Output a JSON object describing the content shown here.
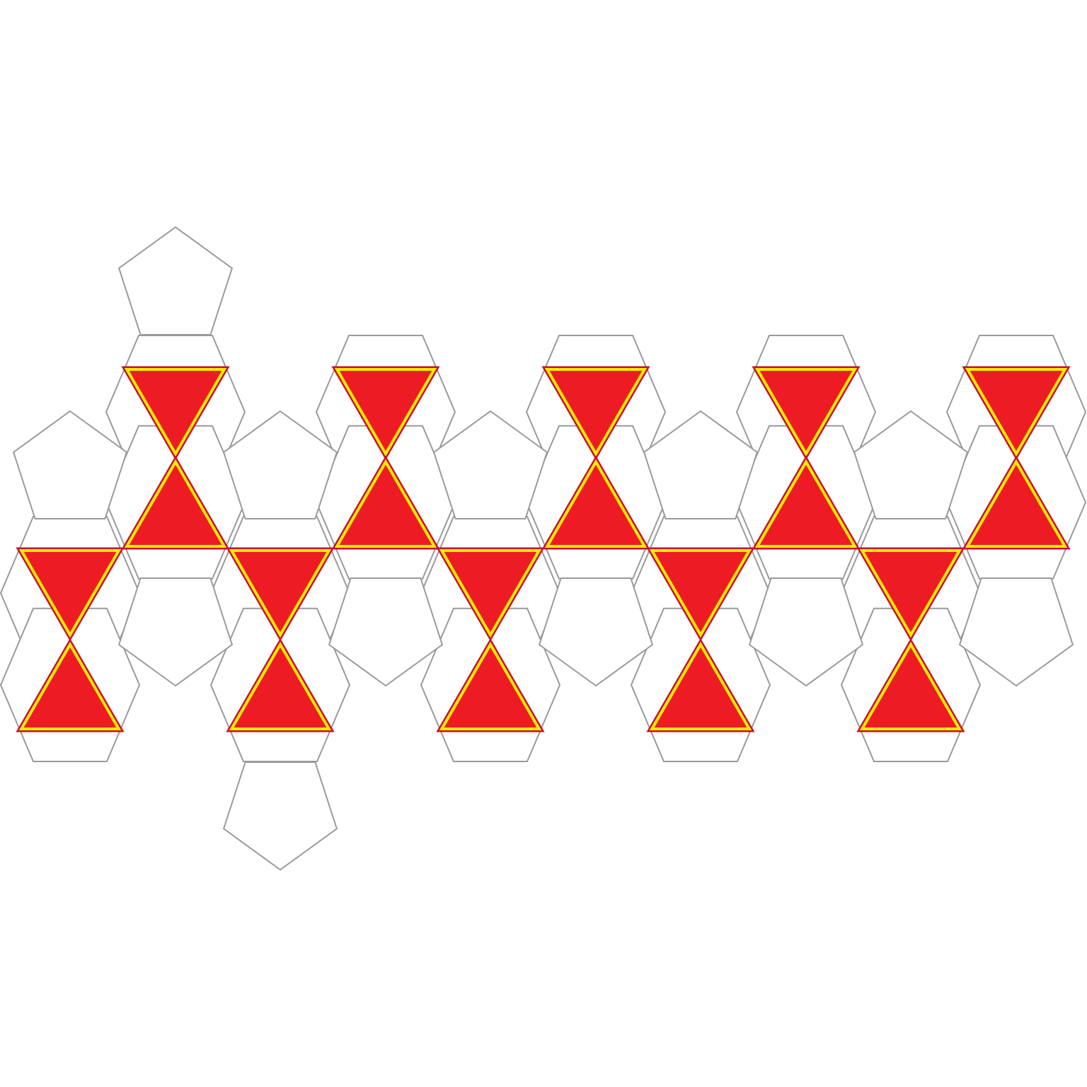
{
  "diagram": {
    "type": "polyhedron-net",
    "colors": {
      "background": "#ffffff",
      "outline": "#9a9a9a",
      "triangle_fill": "#ed1c24",
      "triangle_border": "#ffea00",
      "triangle_edge": "#c8102e"
    },
    "counts": {
      "hexagons": 20,
      "pentagons": 12,
      "triangles": 20
    }
  }
}
